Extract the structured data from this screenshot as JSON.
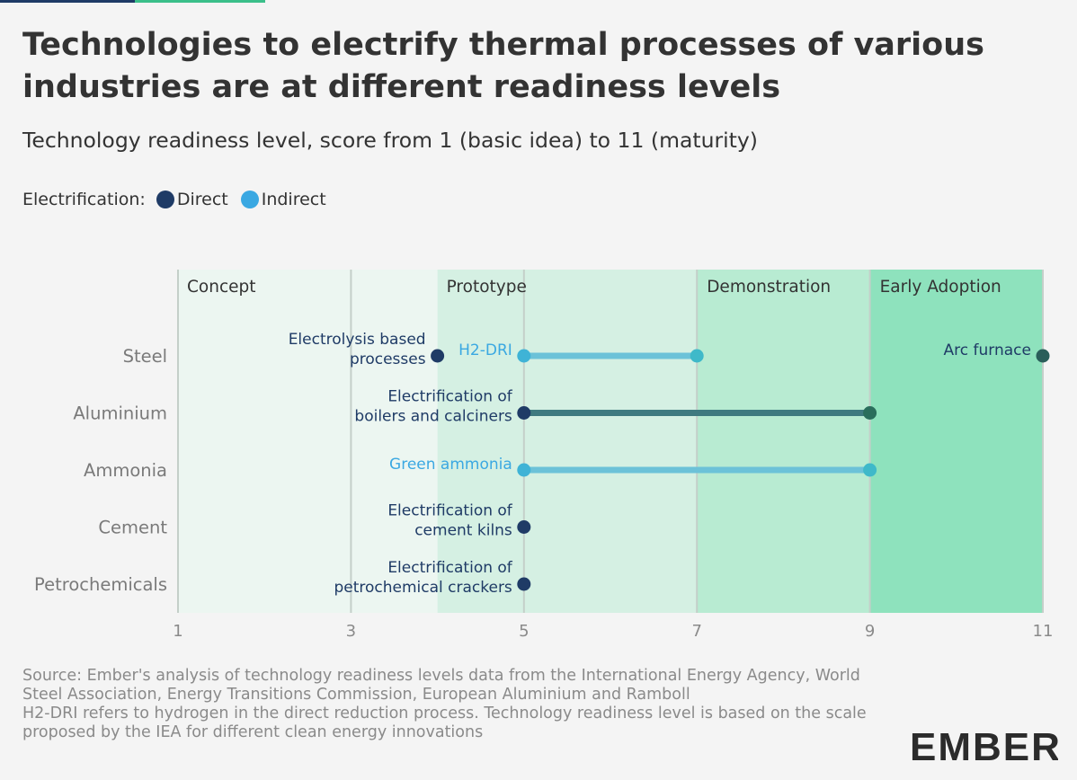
{
  "title": "Technologies to electrify thermal processes of various industries are at different readiness levels",
  "subtitle": "Technology readiness level, score from 1 (basic idea) to 11 (maturity)",
  "legend": {
    "label": "Electrification:",
    "items": [
      {
        "name": "Direct",
        "color": "#1f3b66"
      },
      {
        "name": "Indirect",
        "color": "#3aa8e2"
      }
    ]
  },
  "chart_data": {
    "type": "dumbbell",
    "x_axis": {
      "min": 1,
      "max": 11,
      "ticks": [
        1,
        3,
        5,
        7,
        9,
        11
      ]
    },
    "categories": [
      "Steel",
      "Aluminium",
      "Ammonia",
      "Cement",
      "Petrochemicals"
    ],
    "phases": [
      {
        "label": "Concept",
        "from": 1,
        "to": 4,
        "color": "#ecf6f1"
      },
      {
        "label": "Prototype",
        "from": 4,
        "to": 7,
        "color": "#d5f0e3"
      },
      {
        "label": "Demonstration",
        "from": 7,
        "to": 9,
        "color": "#b8ebd2"
      },
      {
        "label": "Early Adoption",
        "from": 9,
        "to": 11,
        "color": "#8ee2bd"
      }
    ],
    "technologies": [
      {
        "category": "Steel",
        "name": "Electrolysis based processes",
        "lines": [
          "Electrolysis based",
          "processes"
        ],
        "type": "Direct",
        "from": 4,
        "to": 4
      },
      {
        "category": "Steel",
        "name": "H2-DRI",
        "lines": [
          "H2-DRI"
        ],
        "type": "Indirect",
        "from": 5,
        "to": 7
      },
      {
        "category": "Steel",
        "name": "Arc furnace",
        "lines": [
          "Arc furnace"
        ],
        "type": "Direct",
        "from": 11,
        "to": 11
      },
      {
        "category": "Aluminium",
        "name": "Electrification of boilers and calciners",
        "lines": [
          "Electrification of",
          "boilers and calciners"
        ],
        "type": "Direct",
        "from": 5,
        "to": 9
      },
      {
        "category": "Ammonia",
        "name": "Green ammonia",
        "lines": [
          "Green ammonia"
        ],
        "type": "Indirect",
        "from": 5,
        "to": 9
      },
      {
        "category": "Cement",
        "name": "Electrification of cement kilns",
        "lines": [
          "Electrification of",
          "cement kilns"
        ],
        "type": "Direct",
        "from": 5,
        "to": 5
      },
      {
        "category": "Petrochemicals",
        "name": "Electrification of petrochemical crackers",
        "lines": [
          "Electrification of",
          "petrochemical crackers"
        ],
        "type": "Direct",
        "from": 5,
        "to": 5
      }
    ],
    "colors": {
      "direct_dot": "#1f3b66",
      "direct_line": "#3f7a80",
      "indirect_dot": "#3aa8e2",
      "indirect_line": "#6cc2d8",
      "direct_label": "#1f3b66",
      "indirect_label": "#3aa8e2"
    }
  },
  "source": {
    "line1": "Source: Ember's analysis of technology readiness levels data from the International Energy Agency, World Steel Association, Energy Transitions Commission, European Aluminium and Ramboll",
    "line2": "H2-DRI refers to hydrogen in the direct reduction process. Technology readiness level is based on the scale proposed by the IEA for different clean energy innovations"
  },
  "logo": {
    "text": "EMBER",
    "color": "#2b2b2b",
    "accent": "#3bbf8a"
  }
}
